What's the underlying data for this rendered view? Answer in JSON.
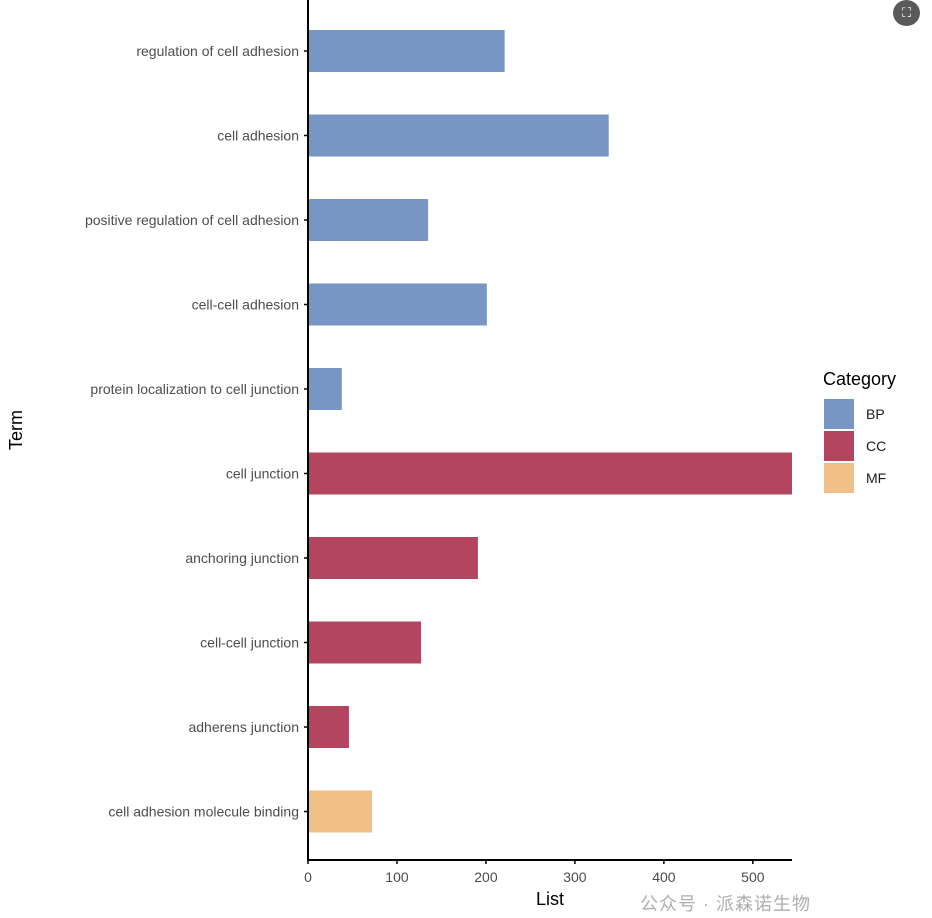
{
  "chart_data": {
    "type": "bar",
    "orientation": "horizontal",
    "title": "",
    "xlabel": "List",
    "ylabel": "Term",
    "xlim": [
      0,
      544
    ],
    "xticks": [
      0,
      100,
      200,
      300,
      400,
      500
    ],
    "categories": [
      "regulation of cell adhesion",
      "cell adhesion",
      "positive regulation of cell adhesion",
      "cell-cell adhesion",
      "protein localization to cell junction",
      "cell junction",
      "anchoring junction",
      "cell-cell junction",
      "adherens junction",
      "cell adhesion molecule binding"
    ],
    "values": [
      221,
      338,
      135,
      201,
      38,
      544,
      191,
      127,
      46,
      72
    ],
    "category_group": [
      "BP",
      "BP",
      "BP",
      "BP",
      "BP",
      "CC",
      "CC",
      "CC",
      "CC",
      "MF"
    ],
    "legend": {
      "title": "Category",
      "position": "right",
      "entries": [
        {
          "label": "BP",
          "color": "#7896c3"
        },
        {
          "label": "CC",
          "color": "#b3455f"
        },
        {
          "label": "MF",
          "color": "#f0c088"
        }
      ]
    },
    "grid": false
  },
  "ui": {
    "expand_icon": "expand-icon",
    "watermark": "公众号 · 派森诺生物"
  }
}
